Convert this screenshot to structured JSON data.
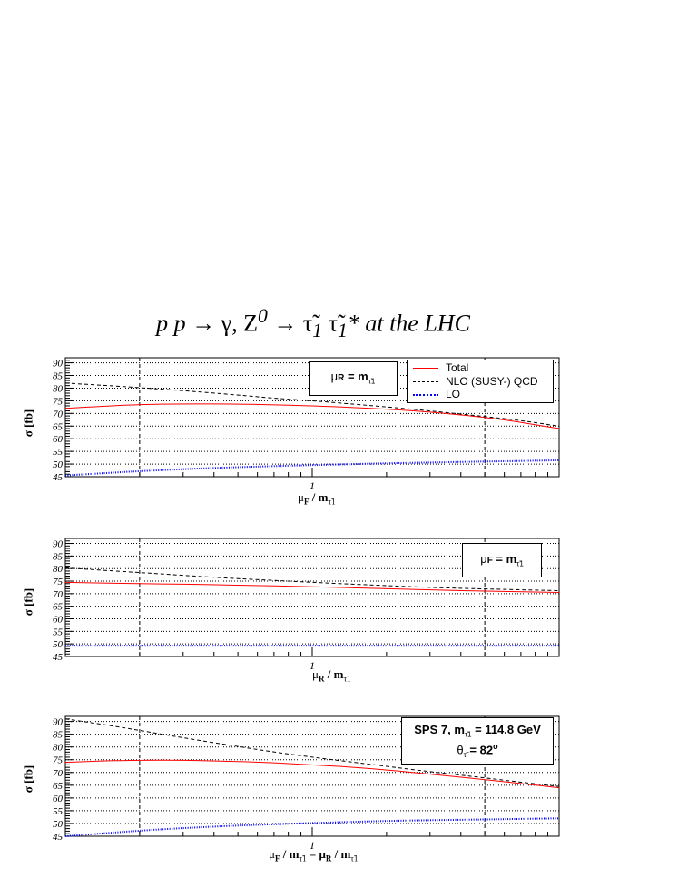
{
  "title": {
    "pre": "p p ",
    "arrow1": "→",
    "gamma": " γ, Z",
    "sup0": "0",
    "arrow2": " → ",
    "tau": "τ̃",
    "sub1": "1",
    "tau2": " τ̃",
    "sub2": "1",
    "post": "* at the LHC"
  },
  "legend": {
    "total": "Total",
    "nlo": "NLO (SUSY-) QCD",
    "lo": "LO"
  },
  "colors": {
    "total": "#ff0000",
    "nlo": "#000000",
    "lo": "#0000ff"
  },
  "panels": [
    {
      "box": {
        "mu": "μ",
        "sub": "R",
        "eq": " = m",
        "tsub": "τ̃",
        "tsub2": "1"
      },
      "xlabel": {
        "mu": "μ",
        "sub": "F",
        "rest": " / m",
        "tsub": "τ̃",
        "tsub2": "1"
      },
      "ylabel": "σ [fb]"
    },
    {
      "box": {
        "mu": "μ",
        "sub": "F",
        "eq": " = m",
        "tsub": "τ̃",
        "tsub2": "1"
      },
      "xlabel": {
        "mu": "μ",
        "sub": "R",
        "rest": " / m",
        "tsub": "τ̃",
        "tsub2": "1"
      },
      "ylabel": "σ [fb]"
    },
    {
      "box": {
        "line1a": "SPS 7, m",
        "line1sub": "τ̃",
        "line1sub2": "1",
        "line1b": " = 114.8 GeV",
        "line2a": "θ",
        "line2sub": "τ̃",
        "line2b": " =  82",
        "line2sup": "o"
      },
      "xlabel": {
        "mu": "μ",
        "sub": "F",
        "rest": " / m",
        "tsub": "τ̃",
        "tsub2": "1",
        "eq": " = μ",
        "sub2": "R",
        "rest2": " / m",
        "tsub3": "τ̃",
        "tsub4": "1"
      },
      "ylabel": "σ [fb]"
    }
  ],
  "chart_data": [
    {
      "type": "line",
      "title": "p p → γ, Z0 → τ̃1 τ̃1* at the LHC",
      "xlabel": "μF / mτ̃1",
      "ylabel": "σ [fb]",
      "xscale": "log",
      "xlim": [
        0.1,
        10
      ],
      "ylim": [
        45,
        92
      ],
      "yticks": [
        45,
        50,
        55,
        60,
        65,
        70,
        75,
        80,
        85,
        90
      ],
      "xtick_labels": [
        "1"
      ],
      "grid": true,
      "legend": "top-right",
      "x": [
        0.1,
        0.15,
        0.2,
        0.3,
        0.5,
        0.7,
        1,
        1.5,
        2,
        3,
        5,
        7,
        10
      ],
      "series": [
        {
          "name": "Total",
          "values": [
            72.0,
            73.0,
            73.5,
            73.8,
            73.7,
            73.4,
            73.0,
            72.3,
            71.7,
            70.6,
            68.5,
            66.5,
            64.0
          ]
        },
        {
          "name": "NLO (SUSY-) QCD",
          "values": [
            82.0,
            81.0,
            80.2,
            79.0,
            77.3,
            76.0,
            75.0,
            73.6,
            72.6,
            71.0,
            68.8,
            67.2,
            65.0
          ]
        },
        {
          "name": "LO",
          "values": [
            45.5,
            46.5,
            47.2,
            48.0,
            48.8,
            49.2,
            49.6,
            50.0,
            50.3,
            50.6,
            51.0,
            51.2,
            51.5
          ]
        }
      ]
    },
    {
      "type": "line",
      "xlabel": "μR / mτ̃1",
      "ylabel": "σ [fb]",
      "xscale": "log",
      "xlim": [
        0.1,
        10
      ],
      "ylim": [
        45,
        92
      ],
      "yticks": [
        45,
        50,
        55,
        60,
        65,
        70,
        75,
        80,
        85,
        90
      ],
      "xtick_labels": [
        "1"
      ],
      "grid": true,
      "x": [
        0.1,
        0.2,
        0.3,
        0.5,
        1,
        2,
        3,
        5,
        10
      ],
      "series": [
        {
          "name": "Total",
          "values": [
            74.5,
            74.0,
            73.8,
            73.4,
            72.8,
            72.0,
            71.5,
            71.0,
            70.5
          ]
        },
        {
          "name": "NLO (SUSY-) QCD",
          "values": [
            80.3,
            78.4,
            77.3,
            76.0,
            74.5,
            73.2,
            72.5,
            71.9,
            71.2
          ]
        },
        {
          "name": "LO",
          "values": [
            49.3,
            49.3,
            49.3,
            49.3,
            49.3,
            49.3,
            49.3,
            49.3,
            49.3
          ]
        }
      ]
    },
    {
      "type": "line",
      "xlabel": "μF / mτ̃1 = μR / mτ̃1",
      "ylabel": "σ [fb]",
      "xscale": "log",
      "xlim": [
        0.1,
        10
      ],
      "ylim": [
        45,
        92
      ],
      "yticks": [
        45,
        50,
        55,
        60,
        65,
        70,
        75,
        80,
        85,
        90
      ],
      "xtick_labels": [
        "1"
      ],
      "grid": true,
      "x": [
        0.1,
        0.15,
        0.2,
        0.3,
        0.5,
        0.7,
        1,
        1.5,
        2,
        3,
        5,
        7,
        10
      ],
      "series": [
        {
          "name": "Total",
          "values": [
            74.0,
            74.6,
            74.8,
            74.8,
            74.3,
            73.8,
            73.0,
            72.0,
            71.0,
            69.4,
            67.2,
            65.7,
            64.0
          ]
        },
        {
          "name": "NLO (SUSY-) QCD",
          "values": [
            91.0,
            88.5,
            86.5,
            83.6,
            80.2,
            78.0,
            76.0,
            73.9,
            72.4,
            70.3,
            67.9,
            66.2,
            64.5
          ]
        },
        {
          "name": "LO",
          "values": [
            45.0,
            46.3,
            47.2,
            48.2,
            49.2,
            49.7,
            50.2,
            50.7,
            51.0,
            51.3,
            51.6,
            51.8,
            52.0
          ]
        }
      ]
    }
  ]
}
